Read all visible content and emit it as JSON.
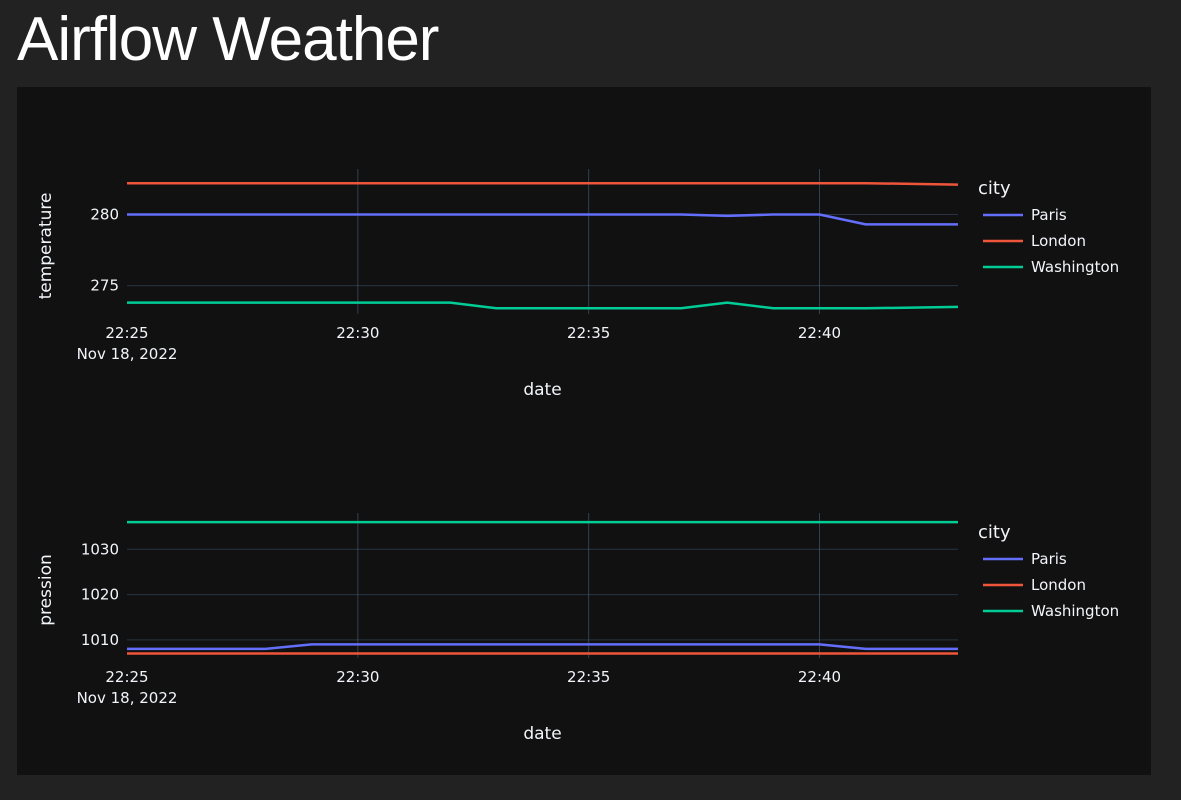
{
  "page": {
    "title": "Airflow Weather"
  },
  "chart_data": [
    {
      "type": "line",
      "x": [
        "22:25",
        "22:26",
        "22:27",
        "22:28",
        "22:29",
        "22:30",
        "22:31",
        "22:32",
        "22:33",
        "22:34",
        "22:35",
        "22:36",
        "22:37",
        "22:38",
        "22:39",
        "22:40",
        "22:41",
        "22:42",
        "22:43"
      ],
      "x_tick_labels": [
        "22:25",
        "22:30",
        "22:35",
        "22:40"
      ],
      "x_tick_values": [
        "22:25",
        "22:30",
        "22:35",
        "22:40"
      ],
      "x_date_label": "Nov 18, 2022",
      "xlabel": "date",
      "ylabel": "temperature",
      "y_ticks": [
        275,
        280
      ],
      "ylim": [
        273.0,
        283.2
      ],
      "xlim": [
        "22:25",
        "22:43"
      ],
      "legend_title": "city",
      "legend_position": "right",
      "grid": true,
      "series": [
        {
          "name": "Paris",
          "color": "#636efa",
          "values": [
            280.0,
            280.0,
            280.0,
            280.0,
            280.0,
            280.0,
            280.0,
            280.0,
            280.0,
            280.0,
            280.0,
            280.0,
            280.0,
            279.9,
            280.0,
            280.0,
            279.3,
            279.3,
            279.3
          ]
        },
        {
          "name": "London",
          "color": "#ef553b",
          "values": [
            282.2,
            282.2,
            282.2,
            282.2,
            282.2,
            282.2,
            282.2,
            282.2,
            282.2,
            282.2,
            282.2,
            282.2,
            282.2,
            282.2,
            282.2,
            282.2,
            282.2,
            282.15,
            282.1
          ]
        },
        {
          "name": "Washington",
          "color": "#00cc96",
          "values": [
            273.8,
            273.8,
            273.8,
            273.8,
            273.8,
            273.8,
            273.8,
            273.8,
            273.4,
            273.4,
            273.4,
            273.4,
            273.4,
            273.8,
            273.4,
            273.4,
            273.4,
            273.45,
            273.5
          ]
        }
      ]
    },
    {
      "type": "line",
      "x": [
        "22:25",
        "22:26",
        "22:27",
        "22:28",
        "22:29",
        "22:30",
        "22:31",
        "22:32",
        "22:33",
        "22:34",
        "22:35",
        "22:36",
        "22:37",
        "22:38",
        "22:39",
        "22:40",
        "22:41",
        "22:42",
        "22:43"
      ],
      "x_tick_labels": [
        "22:25",
        "22:30",
        "22:35",
        "22:40"
      ],
      "x_tick_values": [
        "22:25",
        "22:30",
        "22:35",
        "22:40"
      ],
      "x_date_label": "Nov 18, 2022",
      "xlabel": "date",
      "ylabel": "pression",
      "y_ticks": [
        1010,
        1020,
        1030
      ],
      "ylim": [
        1006.0,
        1038.0
      ],
      "xlim": [
        "22:25",
        "22:43"
      ],
      "legend_title": "city",
      "legend_position": "right",
      "grid": true,
      "series": [
        {
          "name": "Paris",
          "color": "#636efa",
          "values": [
            1008,
            1008,
            1008,
            1008,
            1009,
            1009,
            1009,
            1009,
            1009,
            1009,
            1009,
            1009,
            1009,
            1009,
            1009,
            1009,
            1008,
            1008,
            1008
          ]
        },
        {
          "name": "London",
          "color": "#ef553b",
          "values": [
            1007,
            1007,
            1007,
            1007,
            1007,
            1007,
            1007,
            1007,
            1007,
            1007,
            1007,
            1007,
            1007,
            1007,
            1007,
            1007,
            1007,
            1007,
            1007
          ]
        },
        {
          "name": "Washington",
          "color": "#00cc96",
          "values": [
            1036,
            1036,
            1036,
            1036,
            1036,
            1036,
            1036,
            1036,
            1036,
            1036,
            1036,
            1036,
            1036,
            1036,
            1036,
            1036,
            1036,
            1036,
            1036
          ]
        }
      ]
    }
  ]
}
